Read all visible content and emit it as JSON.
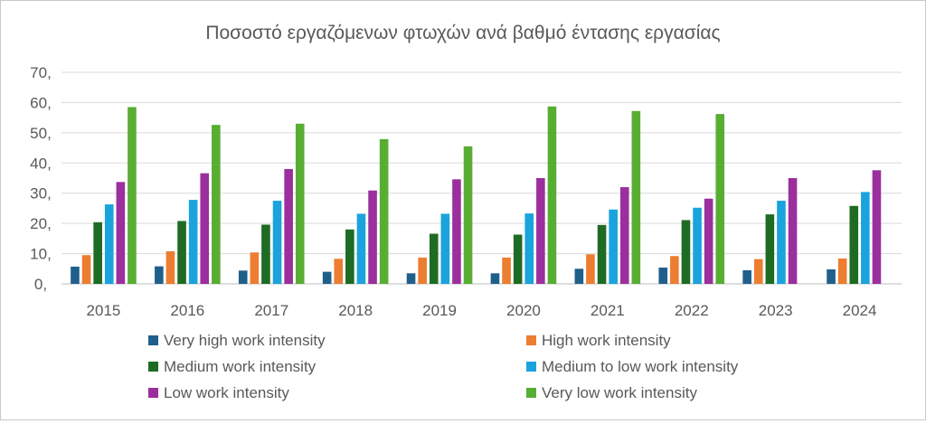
{
  "chart_data": {
    "type": "bar",
    "title": "Ποσοστό εργαζόμενων φτωχών ανά βαθμό έντασης εργασίας",
    "xlabel": "",
    "ylabel": "",
    "categories": [
      "2015",
      "2016",
      "2017",
      "2018",
      "2019",
      "2020",
      "2021",
      "2022",
      "2023",
      "2024"
    ],
    "ylim": [
      0,
      70
    ],
    "yticks": [
      0,
      10,
      20,
      30,
      40,
      50,
      60,
      70
    ],
    "ytick_labels": [
      "0,",
      "10,",
      "20,",
      "30,",
      "40,",
      "50,",
      "60,",
      "70,"
    ],
    "grid": true,
    "legend_position": "bottom",
    "series": [
      {
        "name": "Very high work intensity",
        "color": "#1f5f8b",
        "values": [
          5.7,
          5.8,
          4.4,
          4.0,
          3.5,
          3.5,
          5.0,
          5.4,
          4.5,
          4.8
        ]
      },
      {
        "name": "High work intensity",
        "color": "#ed7d31",
        "values": [
          9.5,
          10.8,
          10.4,
          8.3,
          8.7,
          8.7,
          9.8,
          9.2,
          8.2,
          8.4
        ]
      },
      {
        "name": "Medium work intensity",
        "color": "#1e6b24",
        "values": [
          20.4,
          20.8,
          19.6,
          18.0,
          16.6,
          16.3,
          19.5,
          21.1,
          23.0,
          25.8
        ]
      },
      {
        "name": "Medium to low work intensity",
        "color": "#1aa3dc",
        "values": [
          26.3,
          27.8,
          27.5,
          23.2,
          23.2,
          23.3,
          24.6,
          25.2,
          27.5,
          30.4
        ]
      },
      {
        "name": "Low work intensity",
        "color": "#9b2f9e",
        "values": [
          33.7,
          36.6,
          38.0,
          30.9,
          34.6,
          35.0,
          32.0,
          28.2,
          35.0,
          37.6
        ]
      },
      {
        "name": "Very low work intensity",
        "color": "#58ad33",
        "values": [
          58.5,
          52.6,
          53.0,
          47.9,
          45.5,
          58.7,
          57.2,
          56.2,
          null,
          null
        ]
      }
    ]
  }
}
